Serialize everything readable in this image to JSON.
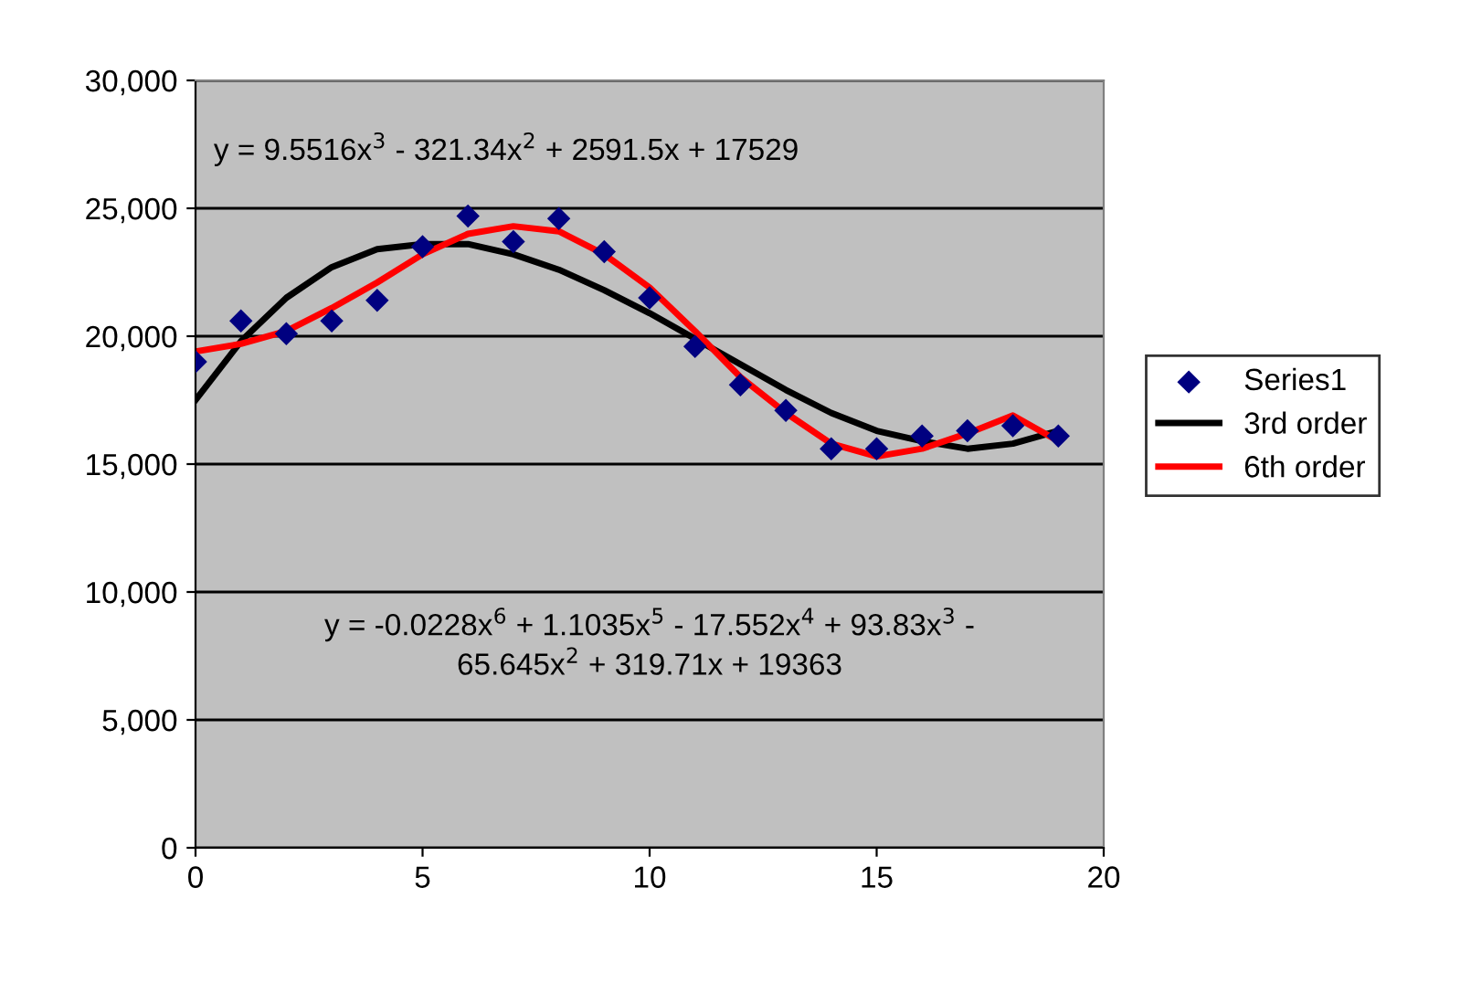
{
  "chart_data": {
    "type": "scatter",
    "x": [
      0,
      1,
      2,
      3,
      4,
      5,
      6,
      7,
      8,
      9,
      10,
      11,
      12,
      13,
      14,
      15,
      16,
      17,
      18,
      19
    ],
    "series": [
      {
        "name": "Series1",
        "marker": "diamond",
        "color": "#000080",
        "values": [
          19000,
          20600,
          20100,
          20600,
          21400,
          23500,
          24700,
          23700,
          24600,
          23300,
          21500,
          19600,
          18100,
          17100,
          15600,
          15600,
          16100,
          16300,
          16500,
          16100
        ]
      },
      {
        "name": "3rd order",
        "type": "line",
        "marker": "none",
        "color": "#000000",
        "x": [
          0,
          1,
          2,
          3,
          4,
          5,
          6,
          7,
          8,
          9,
          10,
          11,
          12,
          13,
          14,
          15,
          16,
          17,
          18,
          19
        ],
        "values": [
          17500,
          19800,
          21500,
          22700,
          23400,
          23600,
          23600,
          23200,
          22600,
          21800,
          20900,
          19900,
          18900,
          17900,
          17000,
          16300,
          15900,
          15600,
          15800,
          16300
        ]
      },
      {
        "name": "6th order",
        "type": "line",
        "marker": "none",
        "color": "#ff0000",
        "x": [
          0,
          1,
          2,
          3,
          4,
          5,
          6,
          7,
          8,
          9,
          10,
          11,
          12,
          13,
          14,
          15,
          16,
          17,
          18,
          19
        ],
        "values": [
          19400,
          19700,
          20200,
          21100,
          22100,
          23200,
          24000,
          24300,
          24100,
          23200,
          21900,
          20200,
          18400,
          17000,
          15800,
          15300,
          15600,
          16200,
          16900,
          15900
        ]
      }
    ],
    "xlim": [
      0,
      20
    ],
    "xticks": [
      0,
      5,
      10,
      15,
      20
    ],
    "ylim": [
      0,
      30000
    ],
    "yticks": [
      {
        "value": 0,
        "label": "0"
      },
      {
        "value": 5000,
        "label": "5,000"
      },
      {
        "value": 10000,
        "label": "10,000"
      },
      {
        "value": 15000,
        "label": "15,000"
      },
      {
        "value": 20000,
        "label": "20,000"
      },
      {
        "value": 25000,
        "label": "25,000"
      },
      {
        "value": 30000,
        "label": "30,000"
      }
    ],
    "grid": "y",
    "legend": "right",
    "line_style": "solid",
    "annotations": [
      "y = 9.5516x$^{3}$ - 321.34x$^{2}$ + 2591.5x + 17529",
      "y = -0.0228x$^{6}$ + 1.1035x$^{5}$ - 17.552x$^{4}$ + 93.83x$^{3}$ -\n65.645x$^{2}$ + 319.71x + 19363"
    ]
  }
}
